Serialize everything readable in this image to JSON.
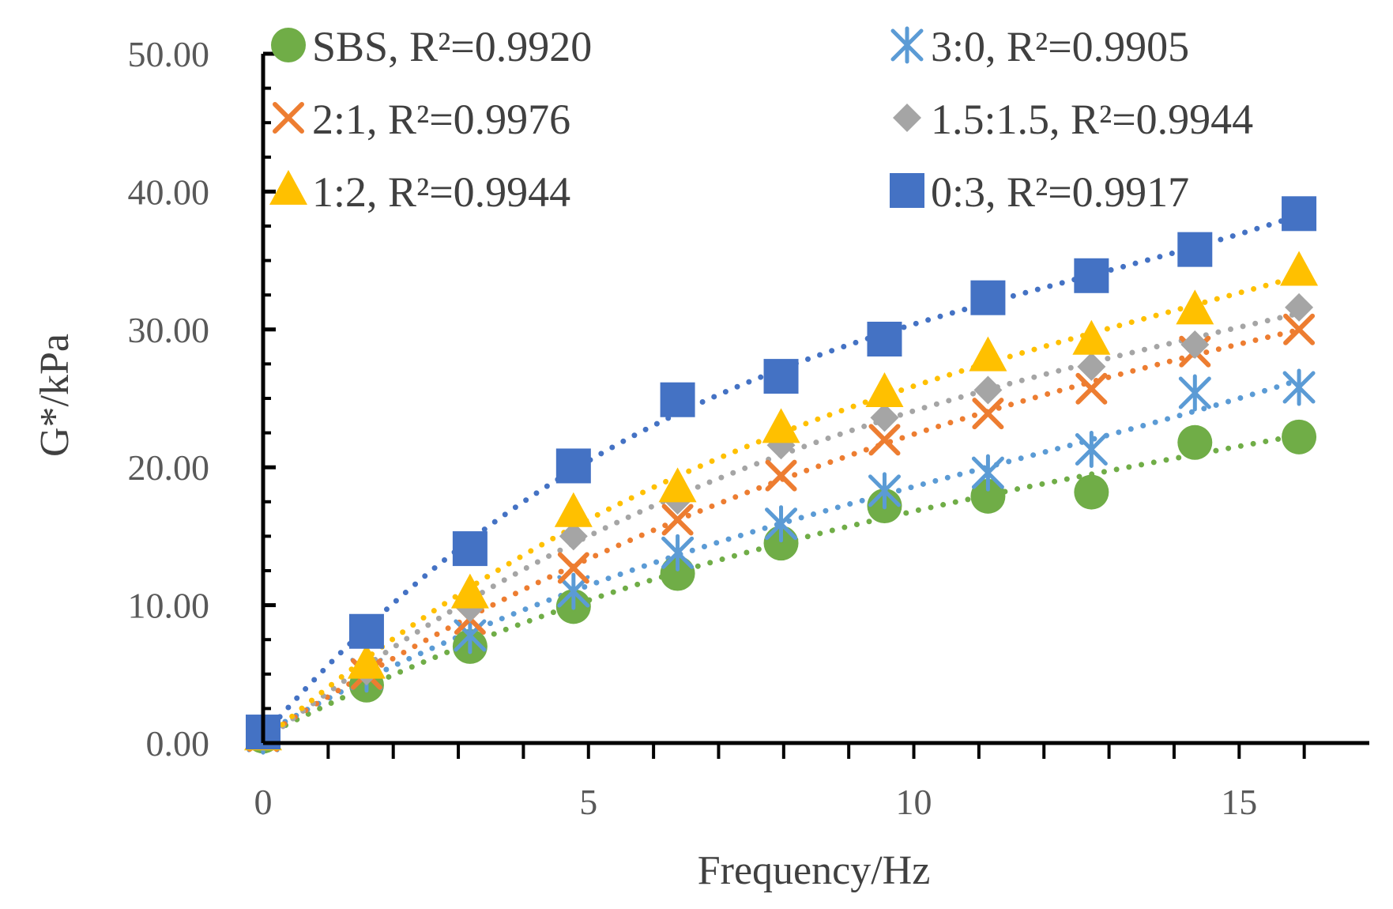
{
  "chart_data": {
    "type": "scatter",
    "title": "",
    "xlabel": "Frequency/Hz",
    "ylabel": "G*/kPa",
    "xlim": [
      0,
      17
    ],
    "ylim": [
      0,
      50
    ],
    "x_ticks": [
      "0",
      "5",
      "10",
      "15"
    ],
    "y_ticks": [
      "0.00",
      "10.00",
      "20.00",
      "30.00",
      "40.00",
      "50.00"
    ],
    "x": [
      0,
      1.59,
      3.18,
      4.77,
      6.37,
      7.96,
      9.55,
      11.14,
      12.73,
      14.32,
      15.92
    ],
    "grid": false,
    "trendline": "dotted polynomial fit per series",
    "legend_position": "top",
    "series": [
      {
        "name": "SBS",
        "label": "SBS, R²=0.9920",
        "marker": "circle",
        "color": "#70ad47",
        "values": [
          0.5,
          4.2,
          7.0,
          9.9,
          12.3,
          14.5,
          17.2,
          17.9,
          18.2,
          21.8,
          22.2
        ]
      },
      {
        "name": "3:0",
        "label": "3:0, R²=0.9905",
        "marker": "asterisk",
        "color": "#5b9bd5",
        "values": [
          0.5,
          5.0,
          7.8,
          11.0,
          13.8,
          15.9,
          18.3,
          19.6,
          21.3,
          25.4,
          25.8
        ]
      },
      {
        "name": "2:1",
        "label": "2:1, R²=0.9976",
        "marker": "cross",
        "color": "#ed7d31",
        "values": [
          0.5,
          5.0,
          9.0,
          12.7,
          16.2,
          19.4,
          22.0,
          23.9,
          25.7,
          28.4,
          30.0
        ]
      },
      {
        "name": "1.5:1.5",
        "label": "1.5:1.5, R²=0.9944",
        "marker": "diamond",
        "color": "#a5a5a5",
        "values": [
          0.5,
          5.2,
          9.8,
          15.0,
          17.6,
          21.6,
          23.6,
          25.6,
          27.3,
          28.9,
          31.6
        ]
      },
      {
        "name": "1:2",
        "label": "1:2, R²=0.9944",
        "marker": "triangle",
        "color": "#ffc000",
        "values": [
          0.5,
          5.7,
          10.8,
          16.7,
          18.5,
          22.8,
          25.4,
          28.0,
          29.2,
          31.4,
          34.2
        ]
      },
      {
        "name": "0:3",
        "label": "0:3, R²=0.9917",
        "marker": "square",
        "color": "#4472c4",
        "values": [
          0.8,
          8.1,
          14.1,
          20.1,
          24.9,
          26.6,
          29.3,
          32.3,
          33.9,
          35.8,
          38.4
        ]
      }
    ]
  }
}
